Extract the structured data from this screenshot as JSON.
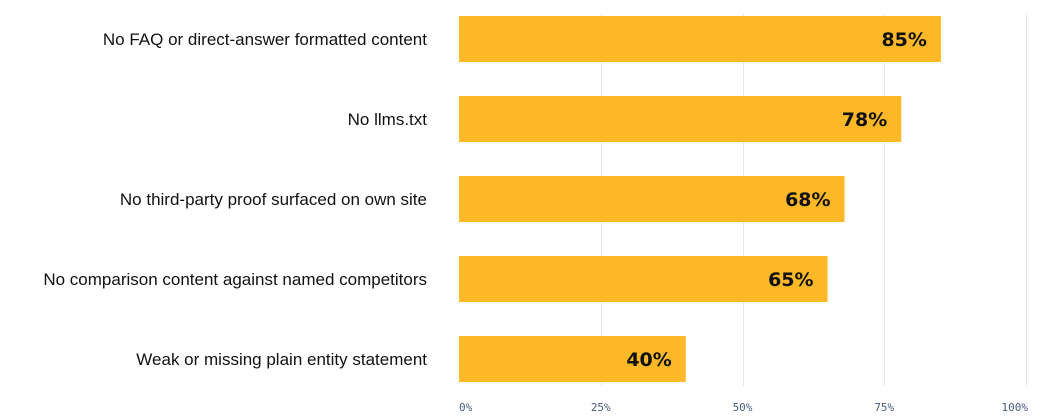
{
  "chart_data": {
    "type": "bar",
    "orientation": "horizontal",
    "categories": [
      "No FAQ or direct-answer formatted content",
      "No llms.txt",
      "No third-party proof surfaced on own site",
      "No comparison content against named competitors",
      "Weak or missing plain entity statement"
    ],
    "values": [
      85,
      78,
      68,
      65,
      40
    ],
    "value_labels": [
      "85%",
      "78%",
      "68%",
      "65%",
      "40%"
    ],
    "xticks": [
      0,
      25,
      50,
      75,
      100
    ],
    "xtick_labels": [
      "0%",
      "25%",
      "50%",
      "75%",
      "100%"
    ],
    "xlim": [
      0,
      100
    ],
    "title": "",
    "xlabel": "",
    "ylabel": "",
    "grid": "vertical",
    "legend": "none"
  },
  "colors": {
    "bar": "#FDB827",
    "grid": "#e6e6e6",
    "tick_text": "#4a5a7a",
    "text": "#111111"
  }
}
